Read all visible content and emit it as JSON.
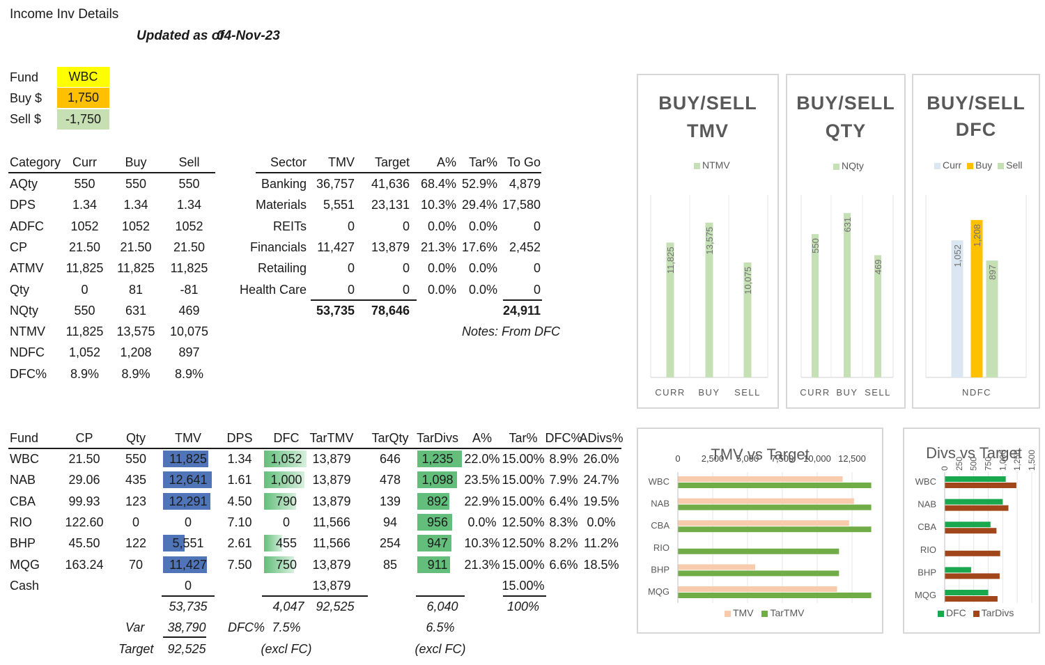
{
  "header": {
    "title": "Income Inv Details",
    "updated_label": "Updated as of",
    "updated_date": "04-Nov-23"
  },
  "inputs": {
    "fund_label": "Fund",
    "fund_value": "WBC",
    "buy_label": "Buy $",
    "buy_value": "1,750",
    "sell_label": "Sell $",
    "sell_value": "-1,750",
    "colors": {
      "fund": "#ffff00",
      "buy": "#ffc000",
      "sell": "#c6e0b4"
    }
  },
  "category_table": {
    "headers": [
      "Category",
      "Curr",
      "Buy",
      "Sell"
    ],
    "rows": [
      [
        "AQty",
        "550",
        "550",
        "550"
      ],
      [
        "DPS",
        "1.34",
        "1.34",
        "1.34"
      ],
      [
        "ADFC",
        "1052",
        "1052",
        "1052"
      ],
      [
        "CP",
        "21.50",
        "21.50",
        "21.50"
      ],
      [
        "ATMV",
        "11,825",
        "11,825",
        "11,825"
      ],
      [
        "Qty",
        "0",
        "81",
        "-81"
      ],
      [
        "NQty",
        "550",
        "631",
        "469"
      ],
      [
        "NTMV",
        "11,825",
        "13,575",
        "10,075"
      ],
      [
        "NDFC",
        "1,052",
        "1,208",
        "897"
      ],
      [
        "DFC%",
        "8.9%",
        "8.9%",
        "8.9%"
      ]
    ]
  },
  "sector_table": {
    "headers": [
      "Sector",
      "TMV",
      "Target",
      "A%",
      "Tar%",
      "To Go"
    ],
    "rows": [
      [
        "Banking",
        "36,757",
        "41,636",
        "68.4%",
        "52.9%",
        "4,879"
      ],
      [
        "Materials",
        "5,551",
        "23,131",
        "10.3%",
        "29.4%",
        "17,580"
      ],
      [
        "REITs",
        "0",
        "0",
        "0.0%",
        "0.0%",
        "0"
      ],
      [
        "Financials",
        "11,427",
        "13,879",
        "21.3%",
        "17.6%",
        "2,452"
      ],
      [
        "Retailing",
        "0",
        "0",
        "0.0%",
        "0.0%",
        "0"
      ],
      [
        "Health Care",
        "0",
        "0",
        "0.0%",
        "0.0%",
        "0"
      ]
    ],
    "total_tmv": "53,735",
    "total_target": "78,646",
    "total_togo": "24,911",
    "notes_label": "Notes:",
    "notes_value": "From DFC"
  },
  "fund_table": {
    "headers": [
      "Fund",
      "CP",
      "Qty",
      "TMV",
      "DPS",
      "DFC",
      "TarTMV",
      "TarQty",
      "TarDivs",
      "A%",
      "Tar%",
      "DFC%",
      "ADivs%"
    ],
    "rows": [
      {
        "fund": "WBC",
        "cp": "21.50",
        "qty": "550",
        "tmv": "11,825",
        "dps": "1.34",
        "dfc": "1,052",
        "tartmv": "13,879",
        "tarqty": "646",
        "tardivs": "1,235",
        "a": "22.0%",
        "tar": "15.00%",
        "dfcp": "8.9%",
        "adivs": "26.0%"
      },
      {
        "fund": "NAB",
        "cp": "29.06",
        "qty": "435",
        "tmv": "12,641",
        "dps": "1.61",
        "dfc": "1,000",
        "tartmv": "13,879",
        "tarqty": "478",
        "tardivs": "1,098",
        "a": "23.5%",
        "tar": "15.00%",
        "dfcp": "7.9%",
        "adivs": "24.7%"
      },
      {
        "fund": "CBA",
        "cp": "99.93",
        "qty": "123",
        "tmv": "12,291",
        "dps": "4.50",
        "dfc": "790",
        "tartmv": "13,879",
        "tarqty": "139",
        "tardivs": "892",
        "a": "22.9%",
        "tar": "15.00%",
        "dfcp": "6.4%",
        "adivs": "19.5%"
      },
      {
        "fund": "RIO",
        "cp": "122.60",
        "qty": "0",
        "tmv": "0",
        "dps": "7.10",
        "dfc": "0",
        "tartmv": "11,566",
        "tarqty": "94",
        "tardivs": "956",
        "a": "0.0%",
        "tar": "12.50%",
        "dfcp": "8.3%",
        "adivs": "0.0%"
      },
      {
        "fund": "BHP",
        "cp": "45.50",
        "qty": "122",
        "tmv": "5,551",
        "dps": "2.61",
        "dfc": "455",
        "tartmv": "11,566",
        "tarqty": "254",
        "tardivs": "947",
        "a": "10.3%",
        "tar": "12.50%",
        "dfcp": "8.2%",
        "adivs": "11.2%"
      },
      {
        "fund": "MQG",
        "cp": "163.24",
        "qty": "70",
        "tmv": "11,427",
        "dps": "7.50",
        "dfc": "750",
        "tartmv": "13,879",
        "tarqty": "85",
        "tardivs": "911",
        "a": "21.3%",
        "tar": "15.00%",
        "dfcp": "6.6%",
        "adivs": "18.5%"
      },
      {
        "fund": "Cash",
        "cp": "",
        "qty": "",
        "tmv": "0",
        "dps": "",
        "dfc": "",
        "tartmv": "13,879",
        "tarqty": "",
        "tardivs": "",
        "a": "",
        "tar": "15.00%",
        "dfcp": "",
        "adivs": ""
      }
    ],
    "total_tmv": "53,735",
    "total_dfc": "4,047",
    "total_tartmv": "92,525",
    "total_tardivs": "6,040",
    "total_tar": "100%",
    "var_label": "Var",
    "var_value": "38,790",
    "dfcp_label": "DFC%",
    "dfcp_value": "7.5%",
    "tar_divs_pct": "6.5%",
    "target_label": "Target",
    "target_value": "92,525",
    "excl1": "(excl FC)",
    "excl2": "(excl FC)",
    "tmv_max": 12641,
    "dfc_max": 1052,
    "tardivs_max": 1235
  },
  "chart_data": [
    {
      "type": "bar",
      "title": "BUY/SELL TMV",
      "categories": [
        "CURR",
        "BUY",
        "SELL"
      ],
      "series": [
        {
          "name": "NTMV",
          "values": [
            11825,
            13575,
            10075
          ],
          "labels": [
            "11,825",
            "13,575",
            "10,075"
          ]
        }
      ],
      "ylim": [
        0,
        16000
      ],
      "color": "#c5e0b4"
    },
    {
      "type": "bar",
      "title": "BUY/SELL QTY",
      "categories": [
        "CURR",
        "BUY",
        "SELL"
      ],
      "series": [
        {
          "name": "NQty",
          "values": [
            550,
            631,
            469
          ],
          "labels": [
            "550",
            "631",
            "469"
          ]
        }
      ],
      "ylim": [
        0,
        700
      ],
      "color": "#c5e0b4"
    },
    {
      "type": "bar",
      "title": "BUY/SELL DFC",
      "categories": [
        "NDFC"
      ],
      "series": [
        {
          "name": "Curr",
          "values": [
            1052
          ],
          "labels": [
            "1,052"
          ],
          "color": "#dae6f2"
        },
        {
          "name": "Buy",
          "values": [
            1208
          ],
          "labels": [
            "1,208"
          ],
          "color": "#ffc000"
        },
        {
          "name": "Sell",
          "values": [
            897
          ],
          "labels": [
            "897"
          ],
          "color": "#c5e0b4"
        }
      ],
      "ylim": [
        0,
        1400
      ]
    },
    {
      "type": "bar",
      "orientation": "horizontal",
      "title": "TMV vs Target",
      "categories": [
        "WBC",
        "NAB",
        "CBA",
        "RIO",
        "BHP",
        "MQG"
      ],
      "series": [
        {
          "name": "TMV",
          "values": [
            11825,
            12641,
            12291,
            0,
            5551,
            11427
          ],
          "color": "#f8cbad"
        },
        {
          "name": "TarTMV",
          "values": [
            13879,
            13879,
            13879,
            11566,
            11566,
            13879
          ],
          "color": "#70ad47"
        }
      ],
      "xticks": [
        "0",
        "2,500",
        "5,000",
        "7,500",
        "10,000",
        "12,500"
      ],
      "xlim": [
        0,
        14000
      ]
    },
    {
      "type": "bar",
      "orientation": "horizontal",
      "title": "Divs vs Target",
      "categories": [
        "WBC",
        "NAB",
        "CBA",
        "RIO",
        "BHP",
        "MQG"
      ],
      "series": [
        {
          "name": "DFC",
          "values": [
            1052,
            1000,
            790,
            0,
            455,
            750
          ],
          "color": "#1aa84e"
        },
        {
          "name": "TarDivs",
          "values": [
            1235,
            1098,
            892,
            956,
            947,
            911
          ],
          "color": "#a0461a"
        }
      ],
      "xticks": [
        "0",
        "250",
        "500",
        "750",
        "1,000",
        "1,250",
        "1,500"
      ],
      "xlim": [
        0,
        1500
      ]
    }
  ]
}
